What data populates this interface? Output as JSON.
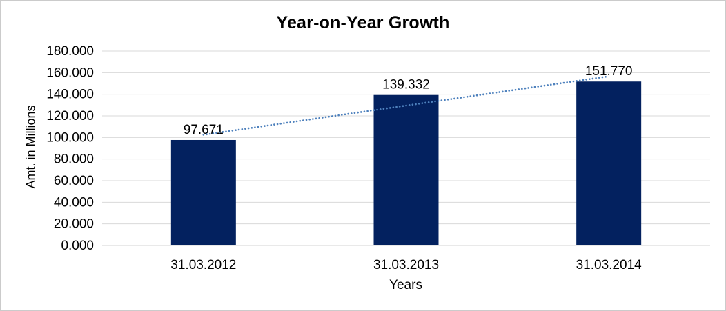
{
  "window": {
    "background": "#ffffff",
    "border_color": "#cbcbcb"
  },
  "chart_data": {
    "type": "bar",
    "title": "Year-on-Year Growth",
    "xlabel": "Years",
    "ylabel": "Amt. in Millions",
    "categories": [
      "31.03.2012",
      "31.03.2013",
      "31.03.2014"
    ],
    "values": [
      97.671,
      139.332,
      151.77
    ],
    "data_labels": [
      "97.671",
      "139.332",
      "151.770"
    ],
    "ylim": [
      0,
      180
    ],
    "ytick_step": 20,
    "ytick_labels": [
      "180.000",
      "160.000",
      "140.000",
      "120.000",
      "100.000",
      "80.000",
      "60.000",
      "40.000",
      "20.000",
      "0.000"
    ],
    "grid": true,
    "legend_position": "none",
    "bar_color": "#03215f",
    "gridline_color": "#d9d9d9",
    "axis_line_color": "#d3d3d3",
    "text_color": "#000000",
    "trendline": {
      "type": "linear",
      "style": "dotted",
      "color": "#4e81bd",
      "start_value": 102.5,
      "end_value": 156.6
    }
  }
}
